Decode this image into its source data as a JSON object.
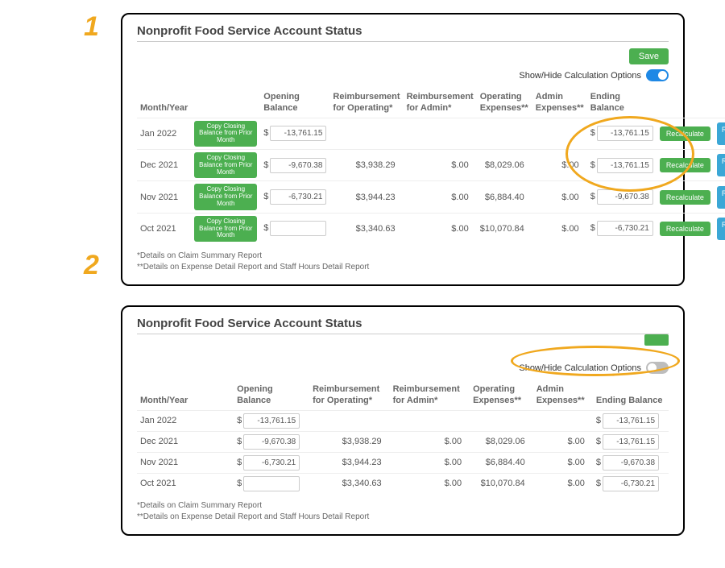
{
  "step_labels": {
    "one": "1",
    "two": "2"
  },
  "panel1": {
    "title": "Nonprofit Food Service Account Status",
    "save_label": "Save",
    "toggle_label": "Show/Hide Calculation Options",
    "toggle_on": true,
    "columns": {
      "month": "Month/Year",
      "copy": "",
      "opening": "Opening Balance",
      "reimb_op": "Reimbursement for Operating*",
      "reimb_admin": "Reimbursement for Admin*",
      "op_exp": "Operating Expenses**",
      "admin_exp": "Admin Expenses**",
      "ending": "Ending Balance",
      "recalc": "",
      "recalc_all": ""
    },
    "copy_btn_label": "Copy Closing Balance from Prior Month",
    "recalc_label": "Recalculate",
    "recalc_all_label": "Recalculate All",
    "rows": [
      {
        "month": "Jan 2022",
        "opening": "-13,761.15",
        "reimb_op": "",
        "reimb_admin": "",
        "op_exp": "",
        "admin_exp": "",
        "ending": "-13,761.15"
      },
      {
        "month": "Dec 2021",
        "opening": "-9,670.38",
        "reimb_op": "$3,938.29",
        "reimb_admin": "$.00",
        "op_exp": "$8,029.06",
        "admin_exp": "$.00",
        "ending": "-13,761.15"
      },
      {
        "month": "Nov 2021",
        "opening": "-6,730.21",
        "reimb_op": "$3,944.23",
        "reimb_admin": "$.00",
        "op_exp": "$6,884.40",
        "admin_exp": "$.00",
        "ending": "-9,670.38"
      },
      {
        "month": "Oct 2021",
        "opening": "",
        "reimb_op": "$3,340.63",
        "reimb_admin": "$.00",
        "op_exp": "$10,070.84",
        "admin_exp": "$.00",
        "ending": "-6,730.21"
      }
    ],
    "footnote1": "*Details on Claim Summary Report",
    "footnote2": "**Details on Expense Detail Report and Staff Hours Detail Report"
  },
  "panel2": {
    "title": "Nonprofit Food Service Account Status",
    "toggle_label": "Show/Hide Calculation Options",
    "toggle_on": false,
    "columns": {
      "month": "Month/Year",
      "opening": "Opening Balance",
      "reimb_op": "Reimbursement for Operating*",
      "reimb_admin": "Reimbursement for Admin*",
      "op_exp": "Operating Expenses**",
      "admin_exp": "Admin Expenses**",
      "ending": "Ending Balance"
    },
    "rows": [
      {
        "month": "Jan 2022",
        "opening": "-13,761.15",
        "reimb_op": "",
        "reimb_admin": "",
        "op_exp": "",
        "admin_exp": "",
        "ending": "-13,761.15"
      },
      {
        "month": "Dec 2021",
        "opening": "-9,670.38",
        "reimb_op": "$3,938.29",
        "reimb_admin": "$.00",
        "op_exp": "$8,029.06",
        "admin_exp": "$.00",
        "ending": "-13,761.15"
      },
      {
        "month": "Nov 2021",
        "opening": "-6,730.21",
        "reimb_op": "$3,944.23",
        "reimb_admin": "$.00",
        "op_exp": "$6,884.40",
        "admin_exp": "$.00",
        "ending": "-9,670.38"
      },
      {
        "month": "Oct 2021",
        "opening": "",
        "reimb_op": "$3,340.63",
        "reimb_admin": "$.00",
        "op_exp": "$10,070.84",
        "admin_exp": "$.00",
        "ending": "-6,730.21"
      }
    ],
    "footnote1": "*Details on Claim Summary Report",
    "footnote2": "**Details on Expense Detail Report and Staff Hours Detail Report"
  },
  "colors": {
    "accent_orange": "#f0a81e",
    "green": "#4caf50",
    "blue_btn": "#3ba7d6",
    "toggle_on": "#1e88e5",
    "toggle_off": "#bdbdbd"
  }
}
